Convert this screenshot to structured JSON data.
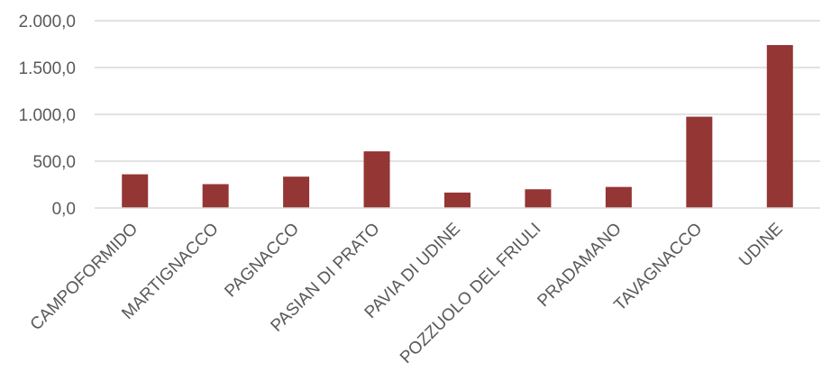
{
  "chart_data": {
    "type": "bar",
    "categories": [
      "CAMPOFORMIDO",
      "MARTIGNACCO",
      "PAGNACCO",
      "PASIAN DI PRATO",
      "PAVIA DI UDINE",
      "POZZUOLO DEL FRIULI",
      "PRADAMANO",
      "TAVAGNACCO",
      "UDINE"
    ],
    "values": [
      360,
      255,
      335,
      605,
      165,
      200,
      225,
      975,
      1740
    ],
    "title": "",
    "xlabel": "",
    "ylabel": "",
    "ylim": [
      0,
      2000
    ],
    "yticks": [
      0,
      500,
      1000,
      1500,
      2000
    ],
    "ytick_labels": [
      "0,0",
      "500,0",
      "1.000,0",
      "1.500,0",
      "2.000,0"
    ],
    "grid": true,
    "legend": "none",
    "bar_color": "#943634"
  }
}
